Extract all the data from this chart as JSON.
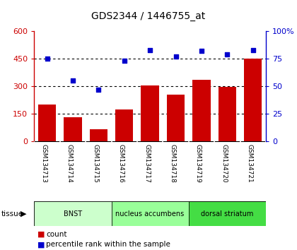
{
  "title": "GDS2344 / 1446755_at",
  "categories": [
    "GSM134713",
    "GSM134714",
    "GSM134715",
    "GSM134716",
    "GSM134717",
    "GSM134718",
    "GSM134719",
    "GSM134720",
    "GSM134721"
  ],
  "counts": [
    200,
    130,
    65,
    175,
    305,
    255,
    335,
    295,
    450
  ],
  "percentiles": [
    75,
    55,
    47,
    73,
    83,
    77,
    82,
    79,
    83
  ],
  "bar_color": "#cc0000",
  "dot_color": "#0000cc",
  "ylim_left": [
    0,
    600
  ],
  "ylim_right": [
    0,
    100
  ],
  "yticks_left": [
    0,
    150,
    300,
    450,
    600
  ],
  "ytick_labels_left": [
    "0",
    "150",
    "300",
    "450",
    "600"
  ],
  "yticks_right": [
    0,
    25,
    50,
    75,
    100
  ],
  "ytick_labels_right": [
    "0",
    "25",
    "50",
    "75",
    "100%"
  ],
  "groups": [
    {
      "label": "BNST",
      "start": 0,
      "end": 3,
      "color": "#ccffcc"
    },
    {
      "label": "nucleus accumbens",
      "start": 3,
      "end": 6,
      "color": "#99ff99"
    },
    {
      "label": "dorsal striatum",
      "start": 6,
      "end": 9,
      "color": "#44dd44"
    }
  ],
  "tissue_label": "tissue",
  "legend_count_label": "count",
  "legend_pct_label": "percentile rank within the sample",
  "tick_area_color": "#c8c8c8"
}
